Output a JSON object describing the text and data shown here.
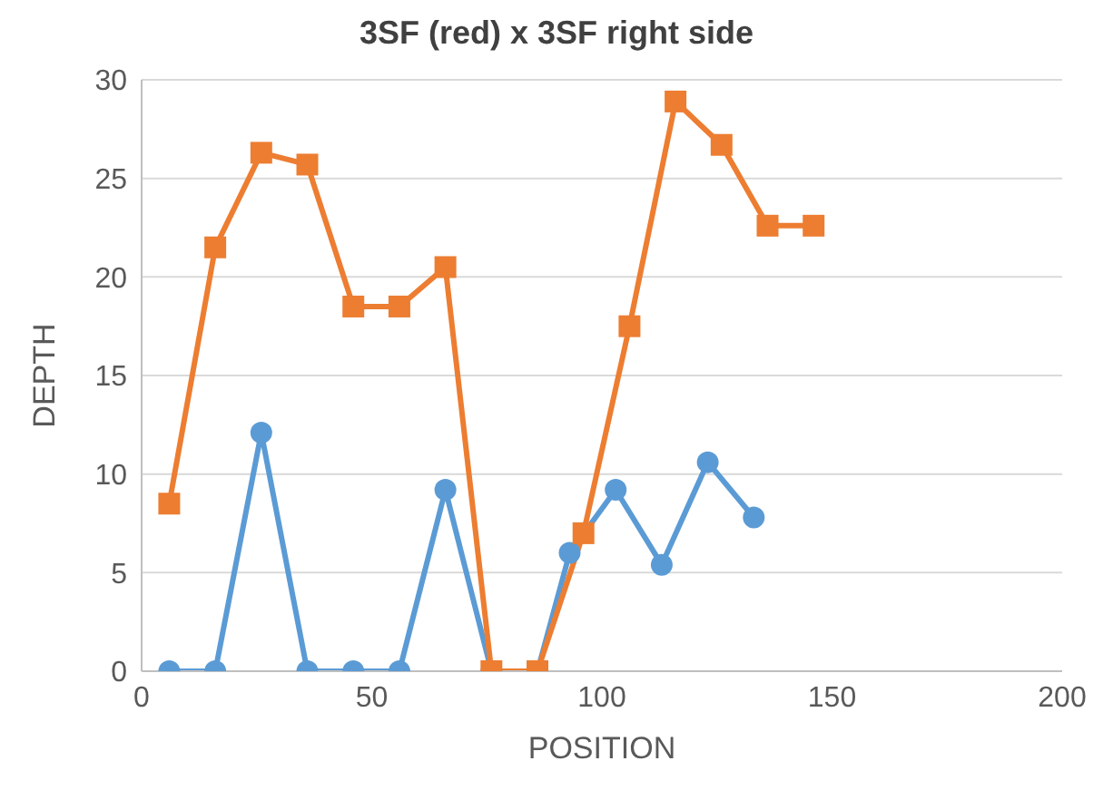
{
  "chart_data": {
    "type": "line",
    "title": "3SF (red) x 3SF right side",
    "xlabel": "POSITION",
    "ylabel": "DEPTH",
    "xlim": [
      0,
      200
    ],
    "xticks": [
      0,
      50,
      100,
      150,
      200
    ],
    "ylim": [
      0,
      30
    ],
    "yticks": [
      0,
      5,
      10,
      15,
      20,
      25,
      30
    ],
    "grid": "y",
    "legend": false,
    "series": [
      {
        "color": "#5b9bd5",
        "marker": "circle",
        "x": [
          6,
          16,
          26,
          36,
          46,
          56,
          66,
          76,
          86,
          93,
          103,
          113,
          123,
          133
        ],
        "values": [
          0,
          0,
          12.1,
          0,
          0,
          0,
          9.2,
          0,
          0,
          6,
          9.2,
          5.4,
          10.6,
          7.8
        ]
      },
      {
        "color": "#ed7d31",
        "marker": "square",
        "x": [
          6,
          16,
          26,
          36,
          46,
          56,
          66,
          76,
          86,
          96,
          106,
          116,
          126,
          136,
          146
        ],
        "values": [
          8.5,
          21.5,
          26.3,
          25.7,
          18.5,
          18.5,
          20.5,
          0,
          0,
          7,
          17.5,
          28.9,
          26.7,
          22.6,
          22.6
        ]
      }
    ]
  }
}
